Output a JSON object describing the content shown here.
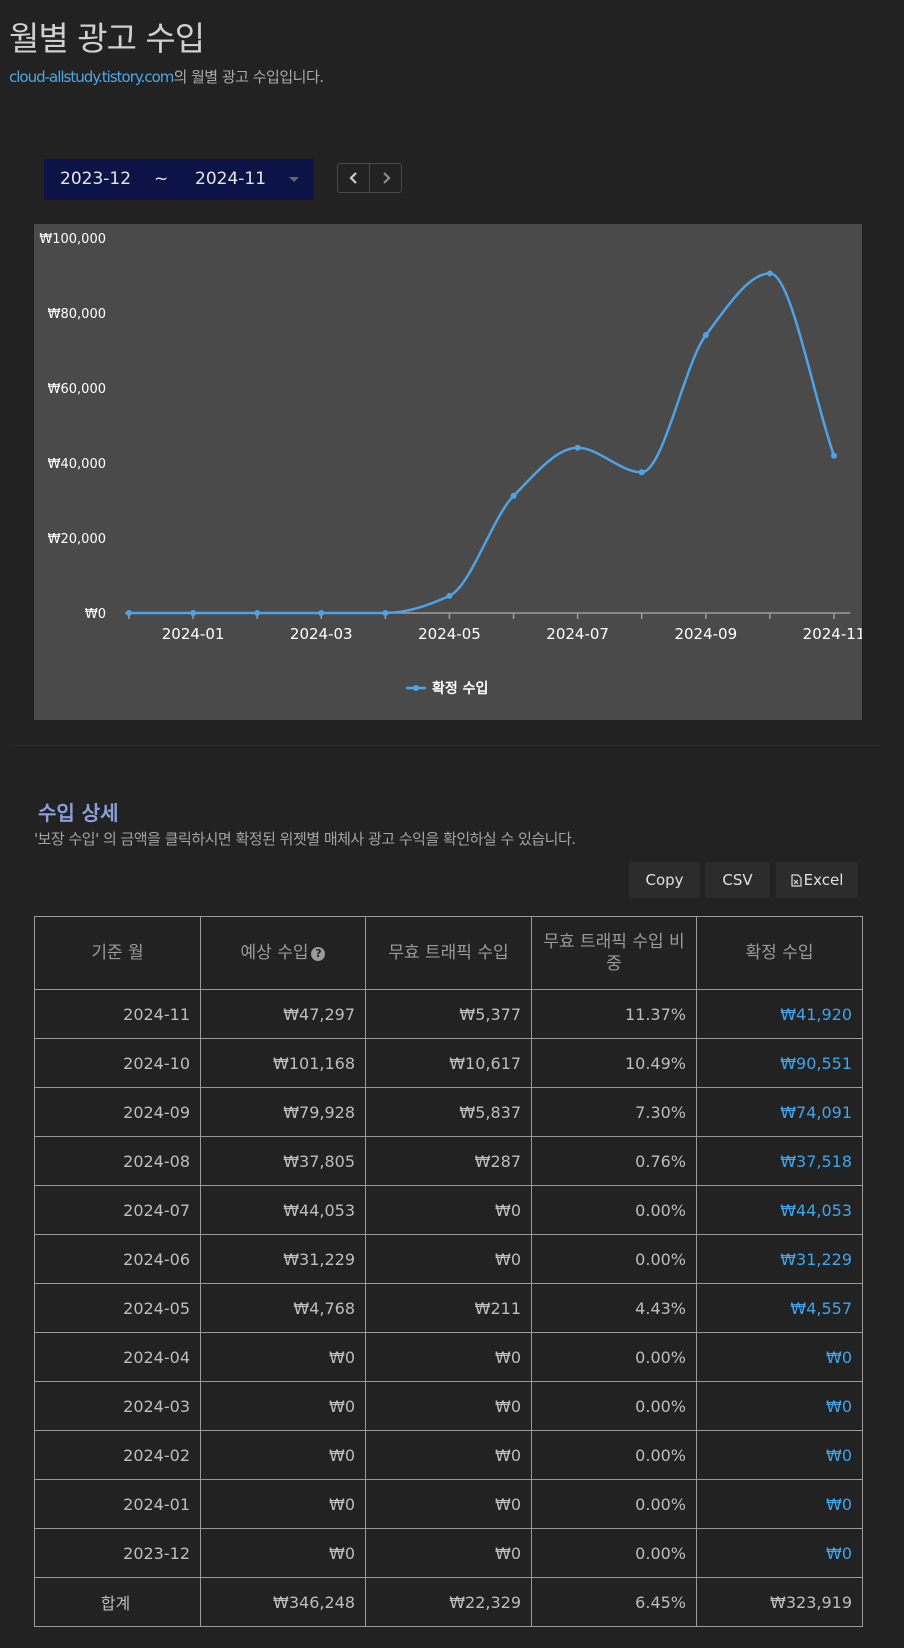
{
  "header": {
    "title": "월별 광고 수입",
    "site": "cloud-allstudy.tistory.com",
    "subtitle_suffix": "의 월별 광고 수입입니다."
  },
  "range": {
    "from": "2023-12",
    "separator": "~",
    "to": "2024-11"
  },
  "nav": {
    "prev_icon": "chevron-left-icon",
    "next_icon": "chevron-right-icon"
  },
  "colors": {
    "line": "#4da3e6",
    "panel": "#4a4a4a",
    "range_bg": "#0c1447",
    "link": "#3ea4ec"
  },
  "chart_data": {
    "type": "line",
    "x": [
      "2023-12",
      "2024-01",
      "2024-02",
      "2024-03",
      "2024-04",
      "2024-05",
      "2024-06",
      "2024-07",
      "2024-08",
      "2024-09",
      "2024-10",
      "2024-11"
    ],
    "x_tick_labels": [
      "2024-01",
      "2024-03",
      "2024-05",
      "2024-07",
      "2024-09",
      "2024-11"
    ],
    "series": [
      {
        "name": "확정 수입",
        "values": [
          0,
          0,
          0,
          0,
          0,
          4557,
          31229,
          44053,
          37518,
          74091,
          90551,
          41920
        ]
      }
    ],
    "ylim": [
      0,
      100000
    ],
    "y_ticks": [
      0,
      20000,
      40000,
      60000,
      80000,
      100000
    ],
    "y_tick_labels": [
      "₩0",
      "₩20,000",
      "₩40,000",
      "₩60,000",
      "₩80,000",
      "₩100,000"
    ],
    "grid": false,
    "legend": "bottom-center",
    "smooth": true
  },
  "details": {
    "title": "수입 상세",
    "description": "'보장 수입' 의 금액을 클릭하시면 확정된 위젯별 매체사 광고 수익을 확인하실 수 있습니다.",
    "buttons": {
      "copy": "Copy",
      "csv": "CSV",
      "excel": "Excel"
    },
    "excel_icon": "file-excel-icon",
    "headers": [
      "기준 월",
      "예상 수입",
      "무효 트래픽 수입",
      "무효 트래픽 수입 비중",
      "확정 수입"
    ],
    "help_icon": "question-circle-icon",
    "rows": [
      [
        "2024-11",
        "₩47,297",
        "₩5,377",
        "11.37%",
        "₩41,920"
      ],
      [
        "2024-10",
        "₩101,168",
        "₩10,617",
        "10.49%",
        "₩90,551"
      ],
      [
        "2024-09",
        "₩79,928",
        "₩5,837",
        "7.30%",
        "₩74,091"
      ],
      [
        "2024-08",
        "₩37,805",
        "₩287",
        "0.76%",
        "₩37,518"
      ],
      [
        "2024-07",
        "₩44,053",
        "₩0",
        "0.00%",
        "₩44,053"
      ],
      [
        "2024-06",
        "₩31,229",
        "₩0",
        "0.00%",
        "₩31,229"
      ],
      [
        "2024-05",
        "₩4,768",
        "₩211",
        "4.43%",
        "₩4,557"
      ],
      [
        "2024-04",
        "₩0",
        "₩0",
        "0.00%",
        "₩0"
      ],
      [
        "2024-03",
        "₩0",
        "₩0",
        "0.00%",
        "₩0"
      ],
      [
        "2024-02",
        "₩0",
        "₩0",
        "0.00%",
        "₩0"
      ],
      [
        "2024-01",
        "₩0",
        "₩0",
        "0.00%",
        "₩0"
      ],
      [
        "2023-12",
        "₩0",
        "₩0",
        "0.00%",
        "₩0"
      ]
    ],
    "total": [
      "합계",
      "₩346,248",
      "₩22,329",
      "6.45%",
      "₩323,919"
    ]
  }
}
